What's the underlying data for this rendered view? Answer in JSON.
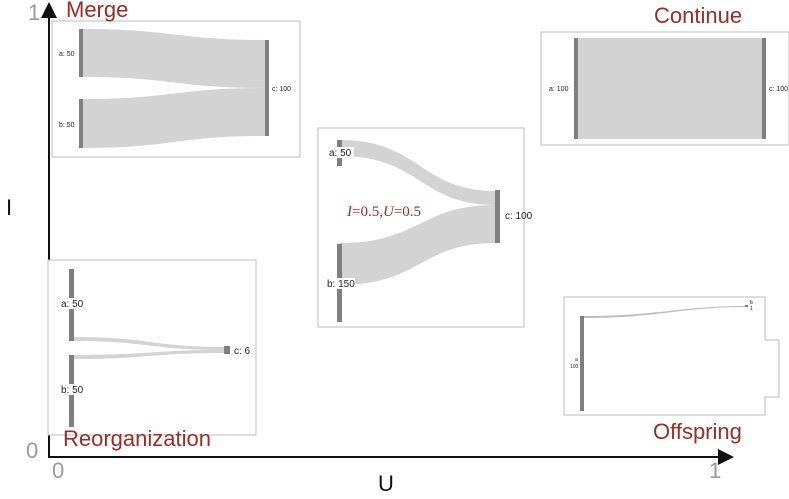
{
  "colors": {
    "corner_label": "#9b2d24",
    "node_bar": "#7f7f7f",
    "link": "#d3d3d3",
    "panel_border": "#bdbdbd",
    "axis": "#111111",
    "tick": "#9a9a9a"
  },
  "axes": {
    "x_label": "U",
    "y_label": "I",
    "x_min_label": "0",
    "x_max_label": "1",
    "y_min_label": "0",
    "y_max_label": "1"
  },
  "panels": {
    "merge": {
      "title": "Merge",
      "node_a": "a: 50",
      "node_b": "b: 50",
      "node_c": "c: 100"
    },
    "continue": {
      "title": "Continue",
      "node_a": "a: 100",
      "node_c": "c: 100"
    },
    "center": {
      "node_a": "a: 50",
      "node_b": "b: 150",
      "node_c": "c: 100",
      "annotation": {
        "i_symbol": "I",
        "i_value": "=0.5,",
        "u_symbol": "U",
        "u_value": "=0.5"
      }
    },
    "reorganization": {
      "title": "Reorganization",
      "node_a": "a: 50",
      "node_b": "b: 50",
      "node_c": "c: 6"
    },
    "offspring": {
      "title": "Offspring",
      "node_a_name": "a",
      "node_a_value": "100",
      "node_b_name": "b",
      "node_b_value": "1"
    }
  }
}
